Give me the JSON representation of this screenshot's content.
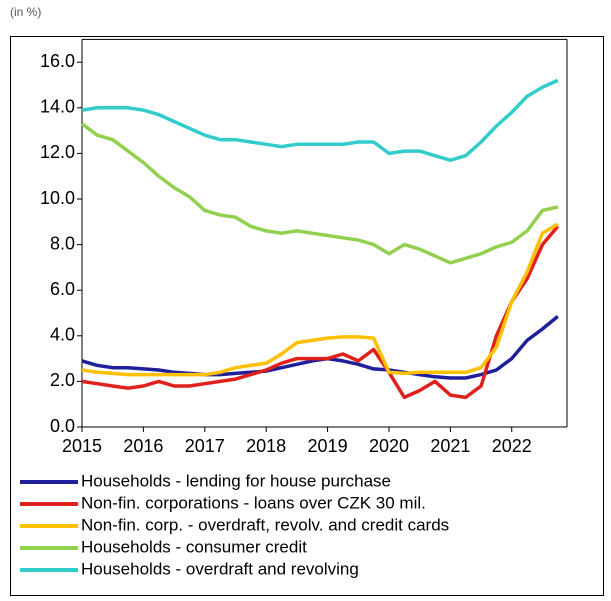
{
  "chart_data": {
    "type": "line",
    "subtitle": "(in %)",
    "x": [
      2015,
      2015.25,
      2015.5,
      2015.75,
      2016,
      2016.25,
      2016.5,
      2016.75,
      2017,
      2017.25,
      2017.5,
      2017.75,
      2018,
      2018.25,
      2018.5,
      2018.75,
      2019,
      2019.25,
      2019.5,
      2019.75,
      2020,
      2020.25,
      2020.5,
      2020.75,
      2021,
      2021.25,
      2021.5,
      2021.75,
      2022,
      2022.25,
      2022.5,
      2022.75
    ],
    "xlim": [
      2015,
      2022.9
    ],
    "xticks": [
      2015,
      2016,
      2017,
      2018,
      2019,
      2020,
      2021,
      2022
    ],
    "ylim": [
      0,
      17
    ],
    "yticks": [
      {
        "value": 0,
        "label": "0.0"
      },
      {
        "value": 2,
        "label": "2.0"
      },
      {
        "value": 4,
        "label": "4.0"
      },
      {
        "value": 6,
        "label": "6.0"
      },
      {
        "value": 8,
        "label": "8.0"
      },
      {
        "value": 10,
        "label": "10.0"
      },
      {
        "value": 12,
        "label": "12.0"
      },
      {
        "value": 14,
        "label": "14.0"
      },
      {
        "value": 16,
        "label": "16.0"
      }
    ],
    "grid": false,
    "legend": "bottom",
    "series": [
      {
        "name": "Households - lending for house purchase",
        "color": "#1f1f9c",
        "values": [
          2.9,
          2.7,
          2.6,
          2.6,
          2.55,
          2.5,
          2.4,
          2.35,
          2.3,
          2.3,
          2.35,
          2.4,
          2.45,
          2.6,
          2.75,
          2.9,
          3.0,
          2.9,
          2.75,
          2.55,
          2.5,
          2.4,
          2.3,
          2.2,
          2.15,
          2.15,
          2.3,
          2.5,
          3.0,
          3.8,
          4.3,
          4.85
        ]
      },
      {
        "name": "Non-fin. corporations - loans over CZK 30 mil.",
        "color": "#e0201b",
        "values": [
          2.0,
          1.9,
          1.8,
          1.7,
          1.8,
          2.0,
          1.8,
          1.8,
          1.9,
          2.0,
          2.1,
          2.3,
          2.5,
          2.8,
          3.0,
          3.0,
          3.0,
          3.2,
          2.9,
          3.4,
          2.4,
          1.3,
          1.6,
          2.0,
          1.4,
          1.3,
          1.8,
          4.0,
          5.5,
          6.5,
          8.0,
          8.8
        ]
      },
      {
        "name": "Non-fin. corp. - overdraft, revolv. and credit cards",
        "color": "#ffc000",
        "values": [
          2.5,
          2.4,
          2.35,
          2.3,
          2.3,
          2.3,
          2.3,
          2.3,
          2.3,
          2.4,
          2.6,
          2.7,
          2.8,
          3.2,
          3.7,
          3.8,
          3.9,
          3.95,
          3.95,
          3.9,
          2.4,
          2.35,
          2.4,
          2.4,
          2.4,
          2.4,
          2.6,
          3.5,
          5.5,
          6.8,
          8.5,
          8.9
        ]
      },
      {
        "name": "Households - consumer credit",
        "color": "#92d050",
        "values": [
          13.3,
          12.8,
          12.6,
          12.1,
          11.6,
          11.0,
          10.5,
          10.1,
          9.5,
          9.3,
          9.2,
          8.8,
          8.6,
          8.5,
          8.6,
          8.5,
          8.4,
          8.3,
          8.2,
          8.0,
          7.6,
          8.0,
          7.8,
          7.5,
          7.2,
          7.4,
          7.6,
          7.9,
          8.1,
          8.6,
          9.5,
          9.65
        ]
      },
      {
        "name": "Households - overdraft and revolving",
        "color": "#33cccc",
        "values": [
          13.9,
          14.0,
          14.0,
          14.0,
          13.9,
          13.7,
          13.4,
          13.1,
          12.8,
          12.6,
          12.6,
          12.5,
          12.4,
          12.3,
          12.4,
          12.4,
          12.4,
          12.4,
          12.5,
          12.5,
          12.0,
          12.1,
          12.1,
          11.9,
          11.7,
          11.9,
          12.5,
          13.2,
          13.8,
          14.5,
          14.9,
          15.2
        ]
      }
    ]
  }
}
